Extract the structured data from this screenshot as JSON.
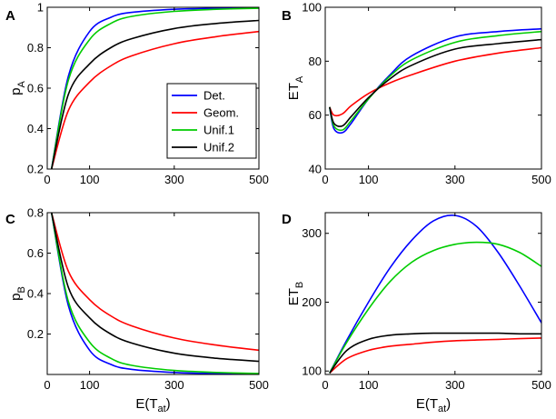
{
  "chart_data": [
    {
      "panel": "A",
      "type": "line",
      "ylabel": "p",
      "ylabel_sub": "A",
      "xlabel": "",
      "xlim": [
        0,
        500
      ],
      "ylim": [
        0.2,
        1.0
      ],
      "xticks": [
        0,
        100,
        300,
        500
      ],
      "yticks": [
        0.2,
        0.4,
        0.6,
        0.8,
        1
      ],
      "ytick_labels": [
        "0.2",
        "0.4",
        "0.6",
        "0.8",
        "1"
      ],
      "x": [
        10,
        50,
        100,
        150,
        200,
        300,
        400,
        500
      ],
      "series": [
        {
          "name": "Det.",
          "color": "#0000ff",
          "values": [
            0.2,
            0.66,
            0.88,
            0.95,
            0.975,
            0.99,
            0.995,
            0.997
          ]
        },
        {
          "name": "Geom.",
          "color": "#ff0000",
          "values": [
            0.2,
            0.49,
            0.63,
            0.71,
            0.76,
            0.82,
            0.855,
            0.88
          ]
        },
        {
          "name": "Unif.1",
          "color": "#00cc00",
          "values": [
            0.2,
            0.64,
            0.84,
            0.92,
            0.955,
            0.98,
            0.99,
            0.995
          ]
        },
        {
          "name": "Unif.2",
          "color": "#000000",
          "values": [
            0.2,
            0.57,
            0.72,
            0.8,
            0.845,
            0.895,
            0.92,
            0.935
          ]
        }
      ]
    },
    {
      "panel": "B",
      "type": "line",
      "ylabel": "ET",
      "ylabel_sub": "A",
      "xlabel": "",
      "xlim": [
        0,
        500
      ],
      "ylim": [
        40,
        100
      ],
      "xticks": [
        0,
        100,
        300,
        500
      ],
      "yticks": [
        40,
        60,
        80,
        100
      ],
      "ytick_labels": [
        "40",
        "60",
        "80",
        "100"
      ],
      "x": [
        10,
        20,
        40,
        60,
        100,
        150,
        200,
        300,
        400,
        500
      ],
      "series": [
        {
          "name": "Det.",
          "color": "#0000ff",
          "values": [
            63,
            55,
            53.5,
            57,
            66,
            75,
            82,
            89,
            91,
            92
          ]
        },
        {
          "name": "Geom.",
          "color": "#ff0000",
          "values": [
            63,
            60,
            60.5,
            63.5,
            68,
            72,
            75,
            80,
            83,
            85
          ]
        },
        {
          "name": "Unif.1",
          "color": "#00cc00",
          "values": [
            63,
            56,
            54.5,
            58,
            66,
            74.5,
            80.5,
            87,
            89.5,
            91
          ]
        },
        {
          "name": "Unif.2",
          "color": "#000000",
          "values": [
            63,
            57,
            56,
            59.5,
            66.5,
            73.5,
            78.5,
            84.5,
            86.5,
            88
          ]
        }
      ]
    },
    {
      "panel": "C",
      "type": "line",
      "ylabel": "p",
      "ylabel_sub": "B",
      "xlabel": "E(T",
      "xlabel_sub": "at",
      "xlabel_end": ")",
      "xlim": [
        0,
        500
      ],
      "ylim": [
        0,
        0.8
      ],
      "xticks": [
        0,
        100,
        300,
        500
      ],
      "yticks": [
        0.2,
        0.4,
        0.6,
        0.8
      ],
      "ytick_labels": [
        "0.2",
        "0.4",
        "0.6",
        "0.8"
      ],
      "x": [
        10,
        50,
        100,
        150,
        200,
        300,
        400,
        500
      ],
      "series": [
        {
          "name": "Det.",
          "color": "#0000ff",
          "values": [
            0.8,
            0.34,
            0.12,
            0.05,
            0.025,
            0.01,
            0.004,
            0.002
          ]
        },
        {
          "name": "Geom.",
          "color": "#ff0000",
          "values": [
            0.8,
            0.51,
            0.37,
            0.29,
            0.24,
            0.18,
            0.145,
            0.12
          ]
        },
        {
          "name": "Unif.1",
          "color": "#00cc00",
          "values": [
            0.8,
            0.36,
            0.16,
            0.08,
            0.045,
            0.02,
            0.01,
            0.005
          ]
        },
        {
          "name": "Unif.2",
          "color": "#000000",
          "values": [
            0.8,
            0.43,
            0.28,
            0.2,
            0.155,
            0.105,
            0.08,
            0.065
          ]
        }
      ]
    },
    {
      "panel": "D",
      "type": "line",
      "ylabel": "ET",
      "ylabel_sub": "B",
      "xlabel": "E(T",
      "xlabel_sub": "at",
      "xlabel_end": ")",
      "xlim": [
        0,
        500
      ],
      "ylim": [
        95,
        330
      ],
      "xticks": [
        0,
        100,
        300,
        500
      ],
      "yticks": [
        100,
        200,
        300
      ],
      "ytick_labels": [
        "100",
        "200",
        "300"
      ],
      "x": [
        10,
        50,
        100,
        150,
        200,
        250,
        300,
        350,
        400,
        450,
        500
      ],
      "series": [
        {
          "name": "Det.",
          "color": "#0000ff",
          "values": [
            97,
            145,
            200,
            250,
            290,
            318,
            326,
            310,
            272,
            223,
            170
          ]
        },
        {
          "name": "Geom.",
          "color": "#ff0000",
          "values": [
            97,
            118,
            130,
            136,
            139,
            142,
            144,
            145,
            146,
            147,
            148
          ]
        },
        {
          "name": "Unif.1",
          "color": "#00cc00",
          "values": [
            97,
            142,
            190,
            230,
            258,
            275,
            284,
            287,
            284,
            272,
            252
          ]
        },
        {
          "name": "Unif.2",
          "color": "#000000",
          "values": [
            97,
            130,
            146,
            152,
            154,
            155,
            155,
            155,
            155,
            154,
            154
          ]
        }
      ]
    }
  ],
  "legend": {
    "panel": "A",
    "placement": "bottom-right",
    "entries": [
      "Det.",
      "Geom.",
      "Unif.1",
      "Unif.2"
    ]
  }
}
